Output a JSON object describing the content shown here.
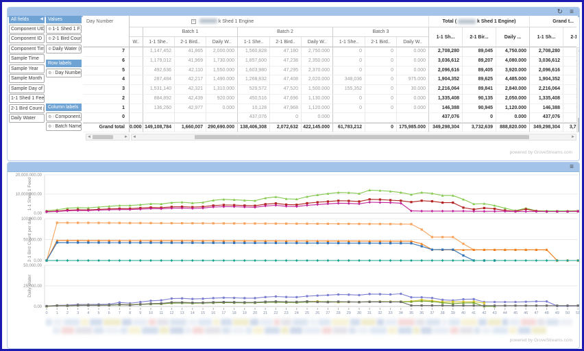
{
  "powered_by": "powered by GroveStreams.com",
  "icons": {
    "refresh": "↻",
    "menu": "≡",
    "collapse": "◀",
    "gear": "⚙",
    "sort_asc": "↑",
    "collapse_box": "−",
    "left": "◄",
    "right": "►",
    "up": "▲"
  },
  "field_list": {
    "header": "All fields",
    "items": [
      "Component UID",
      "Component ID",
      "Component Tim...",
      "Sample Time",
      "Sample Year",
      "Sample Month",
      "Sample Day of ...",
      "1-1 Shed 1 Feed",
      "2-1 Bird Count p...",
      "Daily Water"
    ]
  },
  "drop_zones": {
    "values": {
      "header": "Values",
      "items": [
        "1-1 Shed 1 F...",
        "2-1 Bird Coun...",
        "Daily Water (s..."
      ]
    },
    "row_labels": {
      "header": "Row labels",
      "items": [
        "Day Number"
      ]
    },
    "column_labels": {
      "header": "Column labels",
      "items": [
        "Component...",
        "Batch Name"
      ]
    }
  },
  "pivot": {
    "row_header_title": "Day Number",
    "engine_suffix": "k Shed 1 Engine",
    "total_prefix": "Total (",
    "total_suffix": "k Shed 1 Engine)",
    "grand_title": "Grand t...",
    "partial_col_header": "W..",
    "batches": [
      "Batch 1",
      "Batch 2",
      "Batch 3"
    ],
    "measures": [
      "1-1 She..",
      "2-1 Bird..",
      "Daily W.."
    ],
    "total_measures": [
      "1-1 Sh...",
      "2-1 Bir...",
      "Daily ..."
    ],
    "grand_measures": [
      "1-1 Sh...",
      "2-1 Bir."
    ],
    "grand_row_label": "Grand total",
    "rows": [
      {
        "label": "7",
        "cells": [
          "",
          "1,147,452",
          "41,865",
          "2,000.000",
          "1,560,828",
          "47,180",
          "2,750.000",
          "0",
          "0",
          "0.000",
          "2,708,280",
          "89,045",
          "4,750.000",
          "2,708,280",
          "89,045"
        ]
      },
      {
        "label": "6",
        "cells": [
          "",
          "1,179,012",
          "41,969",
          "1,730.000",
          "1,857,600",
          "47,238",
          "2,350.000",
          "0",
          "0",
          "0.000",
          "3,036,612",
          "89,207",
          "4,080.000",
          "3,036,612",
          "89,207"
        ]
      },
      {
        "label": "5",
        "cells": [
          "",
          "492,636",
          "42,110",
          "1,550.000",
          "1,603,980",
          "47,295",
          "2,370.000",
          "0",
          "0",
          "0.000",
          "2,096,616",
          "89,405",
          "3,920.000",
          "2,096,616",
          "89,405"
        ]
      },
      {
        "label": "4",
        "cells": [
          "",
          "287,484",
          "42,217",
          "1,490.000",
          "1,268,832",
          "47,408",
          "2,020.000",
          "348,036",
          "0",
          "975.000",
          "1,904,352",
          "89,625",
          "4,485.000",
          "1,904,352",
          "89,625"
        ]
      },
      {
        "label": "3",
        "cells": [
          "",
          "1,531,140",
          "42,321",
          "1,310.000",
          "529,572",
          "47,520",
          "1,500.000",
          "155,352",
          "0",
          "30.000",
          "2,216,064",
          "89,841",
          "2,840.000",
          "2,216,064",
          "89,841"
        ]
      },
      {
        "label": "2",
        "cells": [
          "",
          "884,892",
          "42,439",
          "920.000",
          "450,516",
          "47,696",
          "1,130.000",
          "0",
          "0",
          "0.000",
          "1,335,408",
          "90,135",
          "2,050.000",
          "1,335,408",
          "90,135"
        ]
      },
      {
        "label": "1",
        "cells": [
          "",
          "136,260",
          "42,977",
          "0.000",
          "10,128",
          "47,968",
          "1,120.000",
          "0",
          "0",
          "0.000",
          "146,388",
          "90,945",
          "1,120.000",
          "146,388",
          "90,945"
        ]
      },
      {
        "label": "0",
        "cells": [
          "",
          "",
          "",
          "",
          "437,076",
          "0",
          "0.000",
          "",
          "",
          "",
          "437,076",
          "0",
          "0.000",
          "437,076",
          "0"
        ]
      }
    ],
    "grand_row": {
      "label": "Grand total",
      "cells": [
        "0.000",
        "149,108,784",
        "1,660,007",
        "290,690.000",
        "138,406,308",
        "2,072,632",
        "422,145.000",
        "61,783,212",
        "0",
        "175,985.000",
        "349,298,304",
        "3,732,639",
        "888,820.000",
        "349,298,304",
        "3,732,639"
      ]
    }
  },
  "chart_data": {
    "type": "line",
    "legend_redacted": true,
    "legend_palette": [
      "#dbe4f0",
      "#e8edf5",
      "#d3dded",
      "#eef1f6",
      "#f5dada",
      "#f0eccd",
      "#dfe8f3",
      "#e4e4ea",
      "#cfd9ea",
      "#f7f2d8"
    ],
    "x_ticks": [
      0,
      1,
      2,
      3,
      4,
      5,
      6,
      7,
      8,
      9,
      10,
      11,
      12,
      13,
      14,
      15,
      16,
      17,
      18,
      19,
      20,
      21,
      22,
      23,
      24,
      25,
      26,
      27,
      28,
      29,
      30,
      31,
      32,
      33,
      34,
      35,
      36,
      37,
      38,
      39,
      40,
      41,
      42,
      43,
      44,
      45,
      46,
      47,
      48,
      49,
      50,
      51
    ],
    "subplots": [
      {
        "ylabel": "1-1 Shed 1 Feed",
        "ymax": 20000000,
        "yticks": [
          "20,000,000.00",
          "10,000,000.00",
          "0.00"
        ],
        "series": [
          {
            "name": "feed-total",
            "color": "#85c94e",
            "marker": "triangle",
            "values": [
              1300000,
              1800000,
              2600000,
              2900000,
              2800000,
              3200000,
              3600000,
              4000000,
              4000000,
              4400000,
              4900000,
              4800000,
              5500000,
              5700000,
              5300000,
              5600000,
              6700000,
              7200000,
              7000000,
              6700000,
              6500000,
              7900000,
              8500000,
              7500000,
              7300000,
              8600000,
              9500000,
              10200000,
              10800000,
              10700000,
              10200000,
              12000000,
              11800000,
              11400000,
              10800000,
              9700000,
              10800000,
              10300000,
              9200000,
              9200000,
              7200000,
              4800000,
              5000000,
              4000000,
              2600000,
              1400000,
              2600000,
              1300000,
              1200000,
              1200000,
              1200000,
              1300000
            ]
          },
          {
            "name": "feed-series-2",
            "color": "#b22020",
            "marker": "square",
            "values": [
              900000,
              1100000,
              1600000,
              1800000,
              1700000,
              2000000,
              2200000,
              2400000,
              2400000,
              2700000,
              3000000,
              2900000,
              3300000,
              3400000,
              3200000,
              3400000,
              4000000,
              4300000,
              4200000,
              4000000,
              3900000,
              4700000,
              5100000,
              4500000,
              4400000,
              5200000,
              5700000,
              6100000,
              6500000,
              6400000,
              6100000,
              7200000,
              7100000,
              6800000,
              6500000,
              5800000,
              6500000,
              6200000,
              5500000,
              5500000,
              2900000,
              2000000,
              2700000,
              2300000,
              1400000,
              1000000,
              2100000,
              1100000,
              900000,
              900000,
              900000,
              1000000
            ]
          },
          {
            "name": "feed-series-3",
            "color": "#c0219a",
            "marker": "diamond",
            "values": [
              700000,
              900000,
              1300000,
              1400000,
              1400000,
              1600000,
              1800000,
              1900000,
              1900000,
              2100000,
              2400000,
              2300000,
              2600000,
              2700000,
              2500000,
              2700000,
              3200000,
              3400000,
              3400000,
              3200000,
              3100000,
              3800000,
              4100000,
              3600000,
              3500000,
              4100000,
              4500000,
              4900000,
              5200000,
              5100000,
              4900000,
              5700000,
              5600000,
              5500000,
              5200000,
              1200000,
              1100000,
              1100000,
              1100000,
              1100000,
              1100000,
              1000000,
              1000000,
              1000000,
              1000000,
              900000,
              900000,
              900000,
              900000,
              900000,
              900000,
              1000000
            ]
          }
        ]
      },
      {
        "ylabel": "2-1 Bird Count per day",
        "ymax": 100000,
        "yticks": [
          "100,000.00",
          "50,000.00",
          "0.00"
        ],
        "series": [
          {
            "name": "birds-total",
            "color": "#f7a35c",
            "marker": "square",
            "values": [
              0,
              90400,
              90300,
              90200,
              90100,
              90000,
              89900,
              89800,
              89700,
              89600,
              89500,
              89400,
              89300,
              89200,
              89100,
              89000,
              88900,
              88800,
              88700,
              88600,
              88500,
              88400,
              88300,
              88200,
              88100,
              88000,
              87900,
              87800,
              87700,
              87600,
              87500,
              87400,
              87300,
              87200,
              87100,
              87000,
              74000,
              56000,
              56000,
              56000,
              40000,
              25500,
              25500,
              25500,
              25500,
              25500,
              25500,
              25500,
              25500,
              0,
              0,
              0
            ]
          },
          {
            "name": "birds-series-2",
            "color": "#ef7d1a",
            "marker": "triangle",
            "values": [
              0,
              47900,
              47850,
              47800,
              47750,
              47700,
              47650,
              47600,
              47550,
              47500,
              47450,
              47400,
              47350,
              47300,
              47250,
              47200,
              47150,
              47100,
              47050,
              47000,
              46950,
              46900,
              46850,
              46800,
              46750,
              46700,
              46650,
              46600,
              46550,
              46500,
              46450,
              46400,
              46350,
              46300,
              46250,
              46200,
              40000,
              26000,
              25500,
              25500,
              25500,
              25500,
              25500,
              25500,
              25500,
              25500,
              25500,
              25500,
              25500,
              0,
              0,
              0
            ]
          },
          {
            "name": "birds-series-3",
            "color": "#3272b8",
            "marker": "square",
            "values": [
              0,
              42900,
              42850,
              42800,
              42750,
              42700,
              42650,
              42600,
              42550,
              42500,
              42450,
              42400,
              42350,
              42300,
              42250,
              42200,
              42150,
              42100,
              42050,
              42000,
              41950,
              41900,
              41850,
              41800,
              41750,
              41700,
              41650,
              41600,
              41550,
              41500,
              41450,
              41400,
              41350,
              41300,
              41250,
              41200,
              34000,
              26000,
              26000,
              26000,
              12000,
              0,
              0,
              0,
              null,
              null,
              null,
              null,
              null,
              null,
              null,
              null
            ]
          },
          {
            "name": "birds-series-4",
            "color": "#14a08c",
            "marker": "diamond",
            "values": [
              0,
              0,
              0,
              0,
              0,
              0,
              0,
              0,
              0,
              0,
              0,
              0,
              0,
              0,
              0,
              0,
              0,
              0,
              0,
              0,
              0,
              0,
              0,
              0,
              0,
              0,
              0,
              0,
              0,
              0,
              0,
              0,
              0,
              0,
              0,
              0,
              0,
              0,
              0,
              0,
              0,
              0,
              0,
              0,
              0,
              0,
              0,
              0,
              0,
              0,
              0,
              0
            ]
          }
        ]
      },
      {
        "ylabel": "Daily Water",
        "ymax": 50000,
        "yticks": [
          "50,000.00",
          "25,000.00",
          "0.00"
        ],
        "series": [
          {
            "name": "water-total",
            "color": "#7b7ed1",
            "marker": "circle",
            "values": [
              500,
              1300,
              1600,
              2300,
              2300,
              2500,
              2700,
              4800,
              3800,
              5400,
              6800,
              7400,
              9600,
              9800,
              9100,
              9400,
              10100,
              10600,
              10400,
              10100,
              10100,
              11400,
              12100,
              11500,
              11300,
              12500,
              13200,
              13800,
              14500,
              14300,
              13800,
              15100,
              14900,
              14600,
              15400,
              11100,
              11100,
              10300,
              8100,
              7300,
              8700,
              8900,
              5400,
              5400,
              5400,
              5400,
              5700,
              6100,
              6100,
              600,
              600,
              900
            ]
          },
          {
            "name": "water-series-2",
            "color": "#d8c727",
            "marker": "square",
            "values": [
              300,
              1100,
              1000,
              1500,
              1500,
              1600,
              1700,
              2300,
              2200,
              2700,
              3300,
              3600,
              4600,
              4800,
              4400,
              4600,
              4900,
              5100,
              5000,
              4900,
              4900,
              5500,
              5800,
              5500,
              5400,
              5900,
              6200,
              5400,
              5200,
              5300,
              5300,
              5500,
              5900,
              5800,
              5800,
              6300,
              8000,
              6800,
              5600,
              5600,
              5600,
              5900,
              4200,
              null,
              null,
              null,
              null,
              null,
              null,
              null,
              null,
              null
            ]
          },
          {
            "name": "water-series-3",
            "color": "#70a02e",
            "marker": "triangle",
            "values": [
              200,
              900,
              800,
              1200,
              1300,
              1400,
              1500,
              2000,
              1900,
              2400,
              2900,
              3100,
              4000,
              4200,
              3900,
              4100,
              4400,
              4600,
              4500,
              4400,
              4400,
              5000,
              5200,
              4900,
              4800,
              5300,
              5600,
              5900,
              5500,
              5600,
              5300,
              5800,
              5700,
              5600,
              5600,
              5800,
              6500,
              6000,
              4400,
              3400,
              4200,
              4400,
              200,
              200,
              null,
              null,
              null,
              null,
              null,
              null,
              null,
              null
            ]
          },
          {
            "name": "water-series-4",
            "color": "#6b6b6b",
            "marker": "square",
            "values": [
              400,
              1000,
              900,
              1400,
              1300,
              1500,
              1600,
              2400,
              1600,
              2600,
              3400,
              3700,
              4900,
              4900,
              4600,
              4700,
              5100,
              5300,
              5200,
              5000,
              5000,
              5700,
              6000,
              5600,
              5500,
              6100,
              5400,
              5200,
              5800,
              5500,
              5300,
              5600,
              5500,
              5400,
              5600,
              1200,
              1200,
              1200,
              1200,
              1100,
              1100,
              1100,
              1000,
              1000,
              1000,
              1000,
              1000,
              1000,
              1000,
              1000,
              1000,
              1000
            ]
          }
        ]
      }
    ]
  }
}
